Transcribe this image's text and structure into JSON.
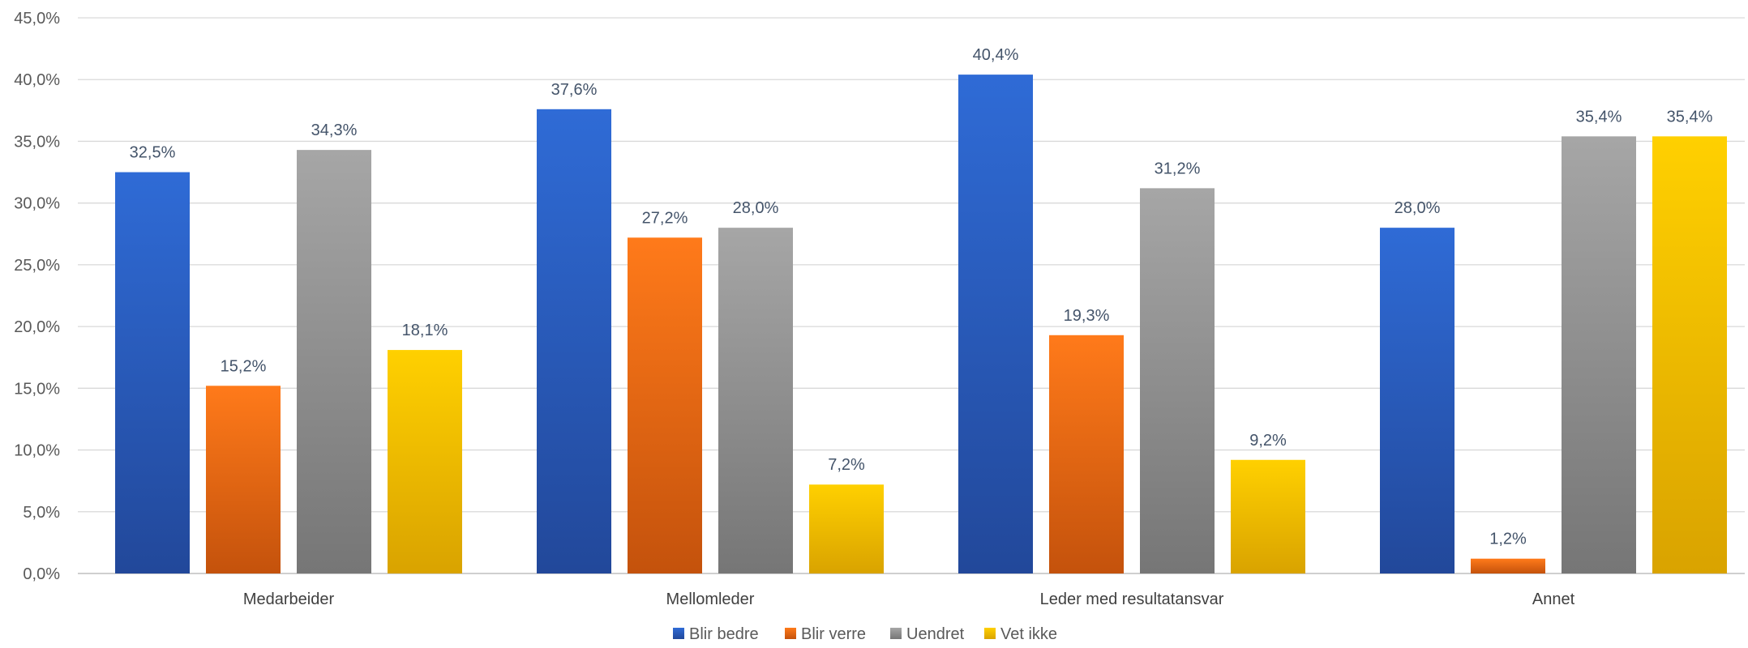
{
  "chart_data": {
    "type": "bar",
    "categories": [
      "Medarbeider",
      "Mellomleder",
      "Leder med resultatansvar",
      "Annet"
    ],
    "series": [
      {
        "name": "Blir bedre",
        "values": [
          32.5,
          37.6,
          40.4,
          28.0
        ],
        "labels": [
          "32,5%",
          "37,6%",
          "40,4%",
          "28,0%"
        ],
        "color": "#2f6bd6",
        "color_dark": "#22489a"
      },
      {
        "name": "Blir verre",
        "values": [
          15.2,
          27.2,
          19.3,
          1.2
        ],
        "labels": [
          "15,2%",
          "27,2%",
          "19,3%",
          "1,2%"
        ],
        "color": "#ff7a1a",
        "color_dark": "#c4520c"
      },
      {
        "name": "Uendret",
        "values": [
          34.3,
          28.0,
          31.2,
          35.4
        ],
        "labels": [
          "34,3%",
          "28,0%",
          "31,2%",
          "35,4%"
        ],
        "color": "#a6a6a6",
        "color_dark": "#767676"
      },
      {
        "name": "Vet ikke",
        "values": [
          18.1,
          7.2,
          9.2,
          35.4
        ],
        "labels": [
          "18,1%",
          "7,2%",
          "9,2%",
          "35,4%"
        ],
        "color": "#ffd000",
        "color_dark": "#d9a300"
      }
    ],
    "ylim": [
      0,
      45
    ],
    "yticks": [
      0,
      5,
      10,
      15,
      20,
      25,
      30,
      35,
      40,
      45
    ],
    "ytick_labels": [
      "0,0%",
      "5,0%",
      "10,0%",
      "15,0%",
      "20,0%",
      "25,0%",
      "30,0%",
      "35,0%",
      "40,0%",
      "45,0%"
    ],
    "title": "",
    "xlabel": "",
    "ylabel": "",
    "grid": true,
    "legend_position": "bottom-center"
  }
}
